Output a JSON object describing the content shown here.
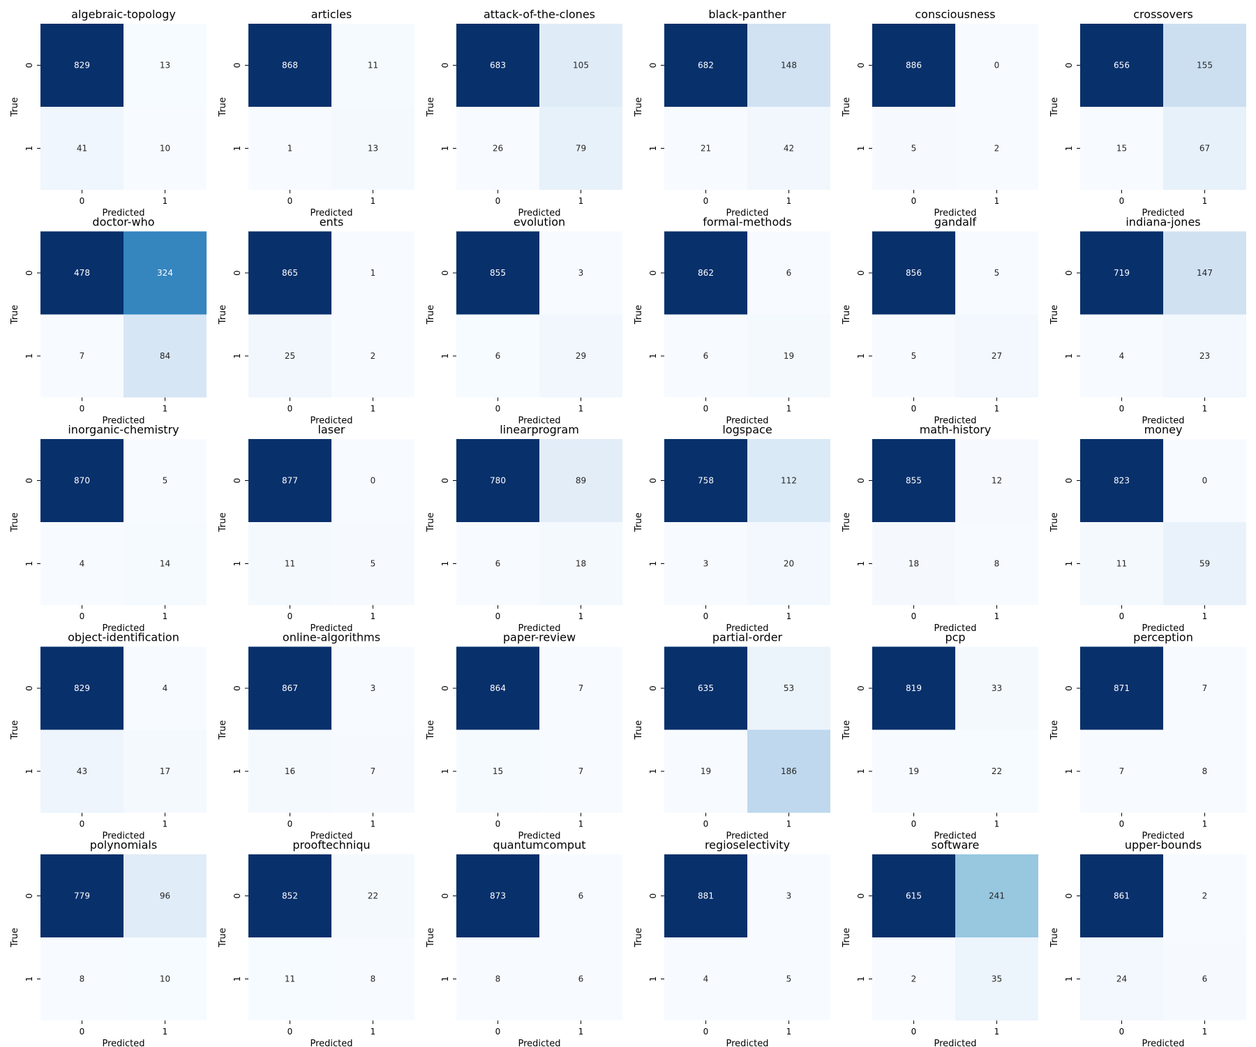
{
  "chart_data": [
    {
      "type": "heatmap",
      "title": "algebraic-topology",
      "matrix": [
        [
          829,
          13
        ],
        [
          41,
          10
        ]
      ],
      "xlabel": "Predicted",
      "ylabel": "True",
      "x_ticks": [
        "0",
        "1"
      ],
      "y_ticks": [
        "0",
        "1"
      ]
    },
    {
      "type": "heatmap",
      "title": "articles",
      "matrix": [
        [
          868,
          11
        ],
        [
          1,
          13
        ]
      ],
      "xlabel": "Predicted",
      "ylabel": "True",
      "x_ticks": [
        "0",
        "1"
      ],
      "y_ticks": [
        "0",
        "1"
      ]
    },
    {
      "type": "heatmap",
      "title": "attack-of-the-clones",
      "matrix": [
        [
          683,
          105
        ],
        [
          26,
          79
        ]
      ],
      "xlabel": "Predicted",
      "ylabel": "True",
      "x_ticks": [
        "0",
        "1"
      ],
      "y_ticks": [
        "0",
        "1"
      ]
    },
    {
      "type": "heatmap",
      "title": "black-panther",
      "matrix": [
        [
          682,
          148
        ],
        [
          21,
          42
        ]
      ],
      "xlabel": "Predicted",
      "ylabel": "True",
      "x_ticks": [
        "0",
        "1"
      ],
      "y_ticks": [
        "0",
        "1"
      ]
    },
    {
      "type": "heatmap",
      "title": "consciousness",
      "matrix": [
        [
          886,
          0
        ],
        [
          5,
          2
        ]
      ],
      "xlabel": "Predicted",
      "ylabel": "True",
      "x_ticks": [
        "0",
        "1"
      ],
      "y_ticks": [
        "0",
        "1"
      ]
    },
    {
      "type": "heatmap",
      "title": "crossovers",
      "matrix": [
        [
          656,
          155
        ],
        [
          15,
          67
        ]
      ],
      "xlabel": "Predicted",
      "ylabel": "True",
      "x_ticks": [
        "0",
        "1"
      ],
      "y_ticks": [
        "0",
        "1"
      ]
    },
    {
      "type": "heatmap",
      "title": "doctor-who",
      "matrix": [
        [
          478,
          324
        ],
        [
          7,
          84
        ]
      ],
      "xlabel": "Predicted",
      "ylabel": "True",
      "x_ticks": [
        "0",
        "1"
      ],
      "y_ticks": [
        "0",
        "1"
      ]
    },
    {
      "type": "heatmap",
      "title": "ents",
      "matrix": [
        [
          865,
          1
        ],
        [
          25,
          2
        ]
      ],
      "xlabel": "Predicted",
      "ylabel": "True",
      "x_ticks": [
        "0",
        "1"
      ],
      "y_ticks": [
        "0",
        "1"
      ]
    },
    {
      "type": "heatmap",
      "title": "evolution",
      "matrix": [
        [
          855,
          3
        ],
        [
          6,
          29
        ]
      ],
      "xlabel": "Predicted",
      "ylabel": "True",
      "x_ticks": [
        "0",
        "1"
      ],
      "y_ticks": [
        "0",
        "1"
      ]
    },
    {
      "type": "heatmap",
      "title": "formal-methods",
      "matrix": [
        [
          862,
          6
        ],
        [
          6,
          19
        ]
      ],
      "xlabel": "Predicted",
      "ylabel": "True",
      "x_ticks": [
        "0",
        "1"
      ],
      "y_ticks": [
        "0",
        "1"
      ]
    },
    {
      "type": "heatmap",
      "title": "gandalf",
      "matrix": [
        [
          856,
          5
        ],
        [
          5,
          27
        ]
      ],
      "xlabel": "Predicted",
      "ylabel": "True",
      "x_ticks": [
        "0",
        "1"
      ],
      "y_ticks": [
        "0",
        "1"
      ]
    },
    {
      "type": "heatmap",
      "title": "indiana-jones",
      "matrix": [
        [
          719,
          147
        ],
        [
          4,
          23
        ]
      ],
      "xlabel": "Predicted",
      "ylabel": "True",
      "x_ticks": [
        "0",
        "1"
      ],
      "y_ticks": [
        "0",
        "1"
      ]
    },
    {
      "type": "heatmap",
      "title": "inorganic-chemistry",
      "matrix": [
        [
          870,
          5
        ],
        [
          4,
          14
        ]
      ],
      "xlabel": "Predicted",
      "ylabel": "True",
      "x_ticks": [
        "0",
        "1"
      ],
      "y_ticks": [
        "0",
        "1"
      ]
    },
    {
      "type": "heatmap",
      "title": "laser",
      "matrix": [
        [
          877,
          0
        ],
        [
          11,
          5
        ]
      ],
      "xlabel": "Predicted",
      "ylabel": "True",
      "x_ticks": [
        "0",
        "1"
      ],
      "y_ticks": [
        "0",
        "1"
      ]
    },
    {
      "type": "heatmap",
      "title": "linearprogram",
      "matrix": [
        [
          780,
          89
        ],
        [
          6,
          18
        ]
      ],
      "xlabel": "Predicted",
      "ylabel": "True",
      "x_ticks": [
        "0",
        "1"
      ],
      "y_ticks": [
        "0",
        "1"
      ]
    },
    {
      "type": "heatmap",
      "title": "logspace",
      "matrix": [
        [
          758,
          112
        ],
        [
          3,
          20
        ]
      ],
      "xlabel": "Predicted",
      "ylabel": "True",
      "x_ticks": [
        "0",
        "1"
      ],
      "y_ticks": [
        "0",
        "1"
      ]
    },
    {
      "type": "heatmap",
      "title": "math-history",
      "matrix": [
        [
          855,
          12
        ],
        [
          18,
          8
        ]
      ],
      "xlabel": "Predicted",
      "ylabel": "True",
      "x_ticks": [
        "0",
        "1"
      ],
      "y_ticks": [
        "0",
        "1"
      ]
    },
    {
      "type": "heatmap",
      "title": "money",
      "matrix": [
        [
          823,
          0
        ],
        [
          11,
          59
        ]
      ],
      "xlabel": "Predicted",
      "ylabel": "True",
      "x_ticks": [
        "0",
        "1"
      ],
      "y_ticks": [
        "0",
        "1"
      ]
    },
    {
      "type": "heatmap",
      "title": "object-identification",
      "matrix": [
        [
          829,
          4
        ],
        [
          43,
          17
        ]
      ],
      "xlabel": "Predicted",
      "ylabel": "True",
      "x_ticks": [
        "0",
        "1"
      ],
      "y_ticks": [
        "0",
        "1"
      ]
    },
    {
      "type": "heatmap",
      "title": "online-algorithms",
      "matrix": [
        [
          867,
          3
        ],
        [
          16,
          7
        ]
      ],
      "xlabel": "Predicted",
      "ylabel": "True",
      "x_ticks": [
        "0",
        "1"
      ],
      "y_ticks": [
        "0",
        "1"
      ]
    },
    {
      "type": "heatmap",
      "title": "paper-review",
      "matrix": [
        [
          864,
          7
        ],
        [
          15,
          7
        ]
      ],
      "xlabel": "Predicted",
      "ylabel": "True",
      "x_ticks": [
        "0",
        "1"
      ],
      "y_ticks": [
        "0",
        "1"
      ]
    },
    {
      "type": "heatmap",
      "title": "partial-order",
      "matrix": [
        [
          635,
          53
        ],
        [
          19,
          186
        ]
      ],
      "xlabel": "Predicted",
      "ylabel": "True",
      "x_ticks": [
        "0",
        "1"
      ],
      "y_ticks": [
        "0",
        "1"
      ]
    },
    {
      "type": "heatmap",
      "title": "pcp",
      "matrix": [
        [
          819,
          33
        ],
        [
          19,
          22
        ]
      ],
      "xlabel": "Predicted",
      "ylabel": "True",
      "x_ticks": [
        "0",
        "1"
      ],
      "y_ticks": [
        "0",
        "1"
      ]
    },
    {
      "type": "heatmap",
      "title": "perception",
      "matrix": [
        [
          871,
          7
        ],
        [
          7,
          8
        ]
      ],
      "xlabel": "Predicted",
      "ylabel": "True",
      "x_ticks": [
        "0",
        "1"
      ],
      "y_ticks": [
        "0",
        "1"
      ]
    },
    {
      "type": "heatmap",
      "title": "polynomials",
      "matrix": [
        [
          779,
          96
        ],
        [
          8,
          10
        ]
      ],
      "xlabel": "Predicted",
      "ylabel": "True",
      "x_ticks": [
        "0",
        "1"
      ],
      "y_ticks": [
        "0",
        "1"
      ]
    },
    {
      "type": "heatmap",
      "title": "prooftechniqu",
      "matrix": [
        [
          852,
          22
        ],
        [
          11,
          8
        ]
      ],
      "xlabel": "Predicted",
      "ylabel": "True",
      "x_ticks": [
        "0",
        "1"
      ],
      "y_ticks": [
        "0",
        "1"
      ]
    },
    {
      "type": "heatmap",
      "title": "quantumcomput",
      "matrix": [
        [
          873,
          6
        ],
        [
          8,
          6
        ]
      ],
      "xlabel": "Predicted",
      "ylabel": "True",
      "x_ticks": [
        "0",
        "1"
      ],
      "y_ticks": [
        "0",
        "1"
      ]
    },
    {
      "type": "heatmap",
      "title": "regioselectivity",
      "matrix": [
        [
          881,
          3
        ],
        [
          4,
          5
        ]
      ],
      "xlabel": "Predicted",
      "ylabel": "True",
      "x_ticks": [
        "0",
        "1"
      ],
      "y_ticks": [
        "0",
        "1"
      ]
    },
    {
      "type": "heatmap",
      "title": "software",
      "matrix": [
        [
          615,
          241
        ],
        [
          2,
          35
        ]
      ],
      "xlabel": "Predicted",
      "ylabel": "True",
      "x_ticks": [
        "0",
        "1"
      ],
      "y_ticks": [
        "0",
        "1"
      ]
    },
    {
      "type": "heatmap",
      "title": "upper-bounds",
      "matrix": [
        [
          861,
          2
        ],
        [
          24,
          6
        ]
      ],
      "xlabel": "Predicted",
      "ylabel": "True",
      "x_ticks": [
        "0",
        "1"
      ],
      "y_ticks": [
        "0",
        "1"
      ]
    }
  ],
  "colors": {
    "colormap": "Blues",
    "light_text": "#ffffff",
    "dark_text": "#262626",
    "scale": [
      [
        0.0,
        "#f7fbff"
      ],
      [
        0.125,
        "#deebf7"
      ],
      [
        0.25,
        "#c6dbef"
      ],
      [
        0.375,
        "#9ecae1"
      ],
      [
        0.5,
        "#6baed6"
      ],
      [
        0.625,
        "#4292c6"
      ],
      [
        0.75,
        "#2171b5"
      ],
      [
        0.875,
        "#08519c"
      ],
      [
        1.0,
        "#08306b"
      ]
    ]
  },
  "layout_info": {
    "rows": 5,
    "cols": 6
  }
}
